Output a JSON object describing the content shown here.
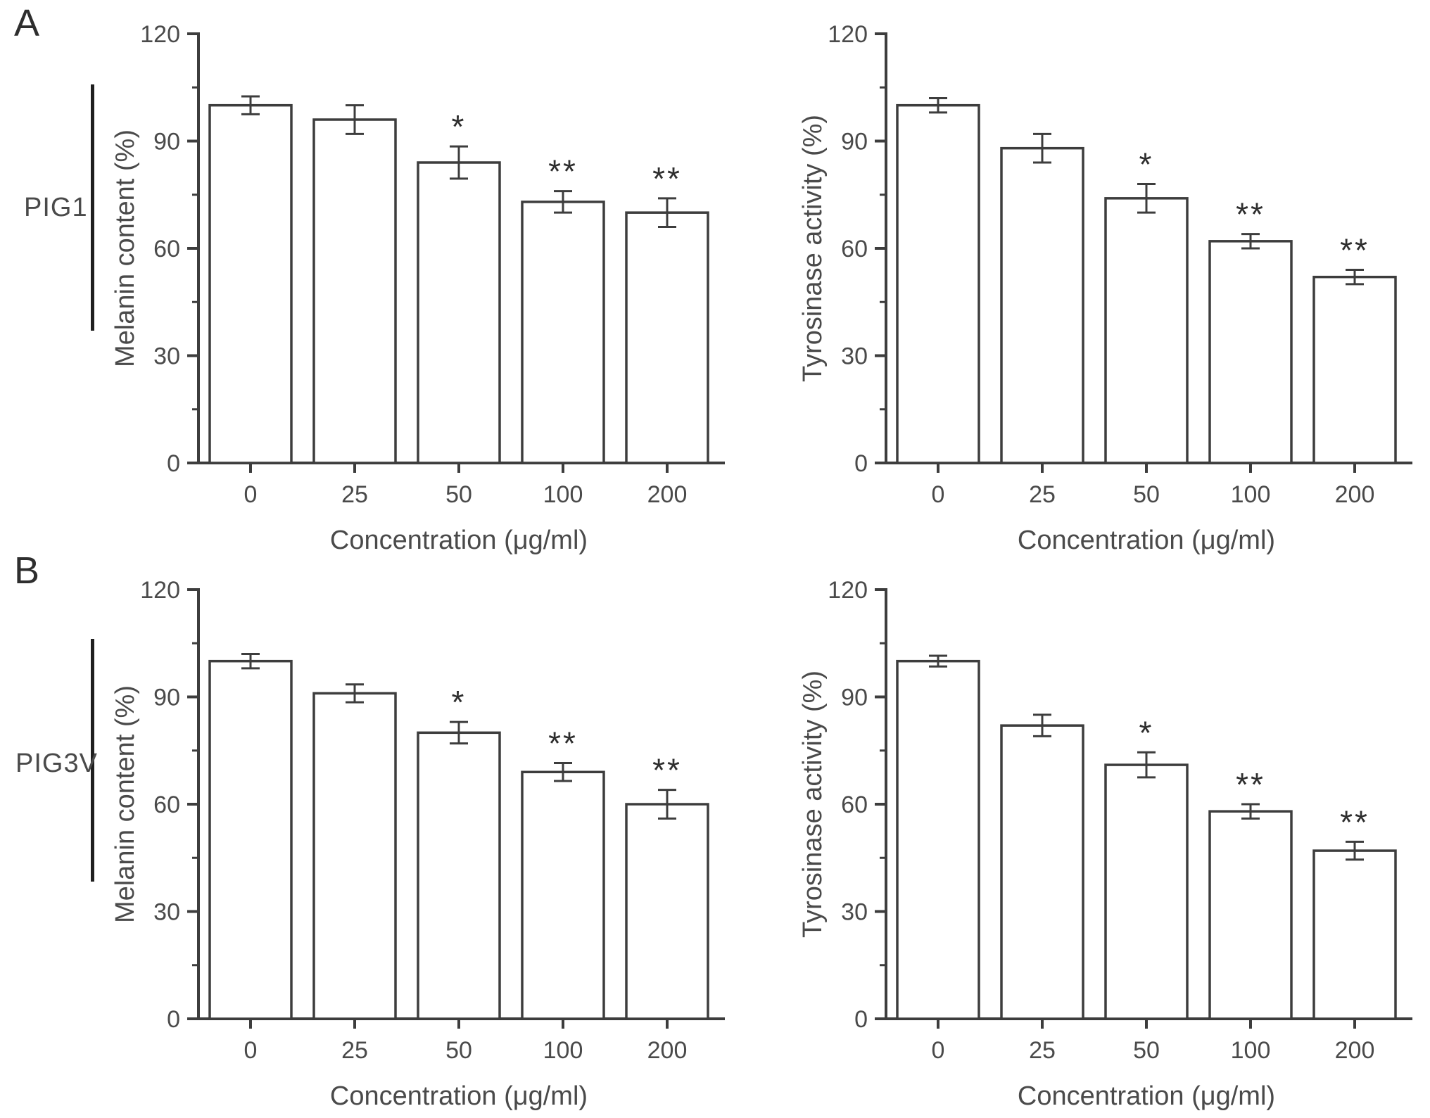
{
  "style": {
    "background": "#ffffff",
    "axis_color": "#3d3d3d",
    "text_color": "#4a4a4a",
    "bar_fill": "#ffffff",
    "bar_stroke": "#3d3d3d",
    "bracket_color": "#1f1f1f"
  },
  "panels": [
    {
      "letter": "A",
      "row_label": "PIG1"
    },
    {
      "letter": "B",
      "row_label": "PIG3V"
    }
  ],
  "chart_data": [
    {
      "id": "pig1-melanin",
      "type": "bar",
      "panel": "A",
      "cell_line": "PIG1",
      "title": "",
      "categories": [
        "0",
        "25",
        "50",
        "100",
        "200"
      ],
      "values": [
        100,
        96,
        84,
        73,
        70
      ],
      "errors": [
        2.5,
        4,
        4.5,
        3,
        4
      ],
      "significance": [
        "",
        "",
        "*",
        "**",
        "**"
      ],
      "xlabel": "Concentration (μg/ml)",
      "ylabel": "Melanin content (%)",
      "ylim": [
        0,
        120
      ],
      "yticks": [
        0,
        30,
        60,
        90,
        120
      ],
      "yminorticks": [
        15,
        45,
        75,
        105
      ],
      "grid": false,
      "legend": "none"
    },
    {
      "id": "pig1-tyrosinase",
      "type": "bar",
      "panel": "A",
      "cell_line": "PIG1",
      "title": "",
      "categories": [
        "0",
        "25",
        "50",
        "100",
        "200"
      ],
      "values": [
        100,
        88,
        74,
        62,
        52
      ],
      "errors": [
        2,
        4,
        4,
        2,
        2
      ],
      "significance": [
        "",
        "",
        "*",
        "**",
        "**"
      ],
      "xlabel": "Concentration (μg/ml)",
      "ylabel": "Tyrosinase activity (%)",
      "ylim": [
        0,
        120
      ],
      "yticks": [
        0,
        30,
        60,
        90,
        120
      ],
      "yminorticks": [
        15,
        45,
        75,
        105
      ],
      "grid": false,
      "legend": "none"
    },
    {
      "id": "pig3v-melanin",
      "type": "bar",
      "panel": "B",
      "cell_line": "PIG3V",
      "title": "",
      "categories": [
        "0",
        "25",
        "50",
        "100",
        "200"
      ],
      "values": [
        100,
        91,
        80,
        69,
        60
      ],
      "errors": [
        2,
        2.5,
        3,
        2.5,
        4
      ],
      "significance": [
        "",
        "",
        "*",
        "**",
        "**"
      ],
      "xlabel": "Concentration (μg/ml)",
      "ylabel": "Melanin content (%)",
      "ylim": [
        0,
        120
      ],
      "yticks": [
        0,
        30,
        60,
        90,
        120
      ],
      "yminorticks": [
        15,
        45,
        75,
        105
      ],
      "grid": false,
      "legend": "none"
    },
    {
      "id": "pig3v-tyrosinase",
      "type": "bar",
      "panel": "B",
      "cell_line": "PIG3V",
      "title": "",
      "categories": [
        "0",
        "25",
        "50",
        "100",
        "200"
      ],
      "values": [
        100,
        82,
        71,
        58,
        47
      ],
      "errors": [
        1.5,
        3,
        3.5,
        2,
        2.5
      ],
      "significance": [
        "",
        "",
        "*",
        "**",
        "**"
      ],
      "xlabel": "Concentration (μg/ml)",
      "ylabel": "Tyrosinase activity (%)",
      "ylim": [
        0,
        120
      ],
      "yticks": [
        0,
        30,
        60,
        90,
        120
      ],
      "yminorticks": [
        15,
        45,
        75,
        105
      ],
      "grid": false,
      "legend": "none"
    }
  ]
}
